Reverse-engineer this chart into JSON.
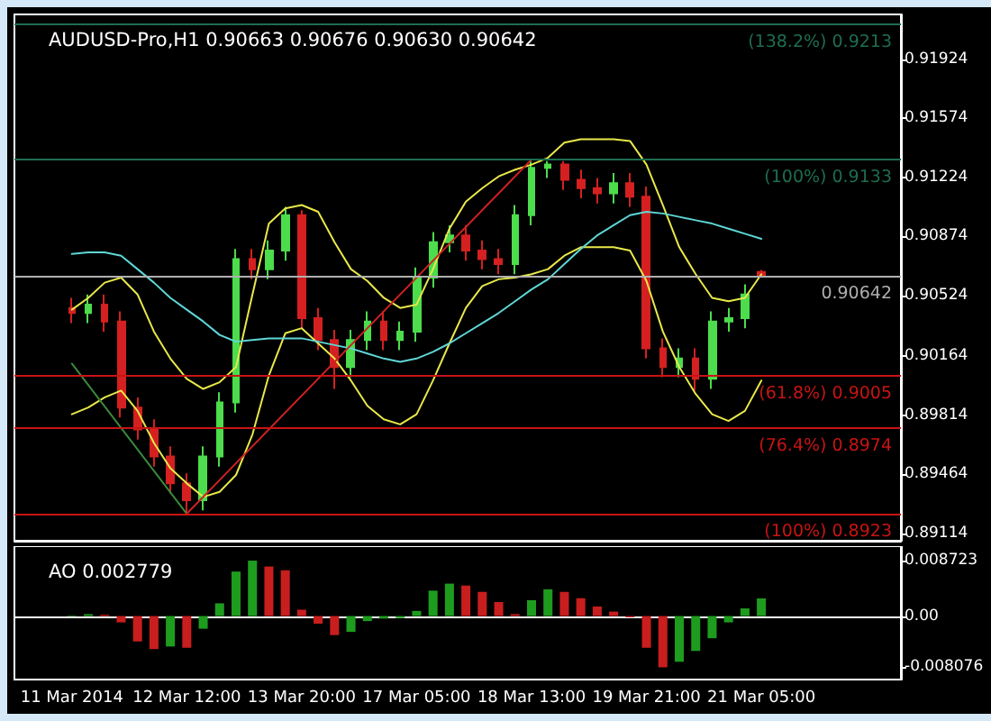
{
  "chart_data": [
    {
      "type": "candlestick",
      "title": "AUDUSD-Pro,H1 0.90663 0.90676 0.90630 0.90642",
      "categories": [
        null,
        null,
        null,
        null,
        null,
        null,
        null,
        null,
        null,
        null,
        null,
        null,
        null,
        null,
        null,
        null,
        null,
        null,
        null,
        null,
        null,
        null,
        null,
        null,
        null,
        null,
        null,
        null,
        null,
        null,
        null,
        null,
        null,
        null,
        null,
        null,
        null,
        null,
        null,
        null,
        null,
        null,
        null,
        null,
        null,
        null,
        null,
        null,
        null,
        null,
        null,
        null,
        null,
        null
      ],
      "ylim": [
        0.8907,
        0.9219
      ],
      "yticks": [
        0.89114,
        0.89464,
        0.89814,
        0.90164,
        0.90524,
        0.90874,
        0.91224,
        0.91574,
        0.91924
      ],
      "ref_lines": [
        {
          "axis": "y",
          "value": 0.9213,
          "label": "(138.2%) 0.9213",
          "color": "#1e6e50"
        },
        {
          "axis": "y",
          "value": 0.9133,
          "label": "(100%) 0.9133",
          "color": "#1e6e50"
        },
        {
          "axis": "y",
          "value": 0.90642,
          "label": "0.90642",
          "color": "#b0b0b0"
        },
        {
          "axis": "y",
          "value": 0.9005,
          "label": "(61.8%) 0.9005",
          "color": "#c81414"
        },
        {
          "axis": "y",
          "value": 0.8974,
          "label": "(76.4%) 0.8974",
          "color": "#c81414"
        },
        {
          "axis": "y",
          "value": 0.8923,
          "label": "(100%) 0.8923",
          "color": "#c81414"
        }
      ],
      "series": [
        {
          "type": "line",
          "color": "#e8e84a",
          "values": [
            null,
            null,
            null,
            0.9044,
            0.9051,
            0.906,
            0.9063,
            0.9053,
            0.9031,
            0.9015,
            0.9003,
            0.8997,
            0.9001,
            0.901,
            0.9053,
            0.9095,
            0.9104,
            0.9106,
            0.9102,
            0.9084,
            0.9068,
            0.9061,
            0.9051,
            0.9045,
            0.9047,
            0.9068,
            0.9092,
            0.9108,
            0.9116,
            0.9123,
            0.9127,
            0.913,
            0.9134,
            0.9143,
            0.9145,
            0.9145,
            0.9145,
            0.9144,
            0.913,
            0.9106,
            0.9081,
            0.9065,
            0.9051,
            0.9049,
            0.9051,
            0.9065,
            null,
            null,
            null,
            null,
            null,
            null,
            null,
            null
          ]
        },
        {
          "type": "line",
          "color": "#e8e84a",
          "values": [
            null,
            null,
            null,
            0.8982,
            0.8986,
            0.8992,
            0.8996,
            0.8984,
            0.8965,
            0.895,
            0.8941,
            0.8933,
            0.8936,
            0.8946,
            0.897,
            0.9005,
            0.903,
            0.9033,
            0.9024,
            0.9015,
            0.9002,
            0.8987,
            0.8979,
            0.8976,
            0.8982,
            0.9002,
            0.9024,
            0.9045,
            0.9058,
            0.9062,
            0.9063,
            0.9065,
            0.9068,
            0.9076,
            0.9081,
            0.9081,
            0.9081,
            0.9079,
            0.9061,
            0.9031,
            0.901,
            0.8994,
            0.8982,
            0.8978,
            0.8984,
            0.9002,
            null,
            null,
            null,
            null,
            null,
            null,
            null,
            null
          ]
        },
        {
          "type": "line",
          "color": "#5fd6d6",
          "values": [
            null,
            null,
            null,
            0.9077,
            0.9078,
            0.9078,
            0.9076,
            0.9068,
            0.906,
            0.9051,
            0.9044,
            0.9037,
            0.9029,
            0.9025,
            0.9026,
            0.9027,
            0.9027,
            0.9027,
            0.9025,
            0.9023,
            0.9021,
            0.9018,
            0.9015,
            0.9013,
            0.9015,
            0.9019,
            0.9024,
            0.903,
            0.9036,
            0.9042,
            0.9049,
            0.9056,
            0.9062,
            0.9071,
            0.908,
            0.9088,
            0.9094,
            0.91,
            0.9102,
            0.9101,
            0.9099,
            0.9097,
            0.9095,
            0.9092,
            0.9089,
            0.9086,
            null,
            null,
            null,
            null,
            null,
            null,
            null,
            null
          ]
        },
        {
          "type": "line",
          "color": "#3a8a3a",
          "values": [
            null,
            null,
            null,
            0.9012,
            null,
            null,
            null,
            null,
            null,
            null,
            0.8923,
            null,
            null,
            null,
            null,
            null,
            null,
            null,
            null,
            null,
            null,
            null,
            null,
            null,
            null,
            null,
            null,
            null,
            null,
            null,
            null,
            null,
            null,
            null,
            null,
            null,
            null,
            null,
            null,
            null,
            null,
            null,
            null,
            null,
            null,
            null,
            null,
            null,
            null,
            null,
            null,
            null,
            null,
            null
          ]
        },
        {
          "type": "line",
          "color": "#cc2222",
          "values": [
            null,
            null,
            null,
            null,
            null,
            null,
            null,
            null,
            null,
            null,
            0.8923,
            null,
            null,
            null,
            null,
            null,
            null,
            null,
            null,
            null,
            null,
            null,
            null,
            null,
            null,
            null,
            null,
            null,
            null,
            null,
            null,
            0.9133,
            null,
            null,
            null,
            null,
            null,
            null,
            null,
            null,
            null,
            null,
            null,
            null,
            null,
            null,
            null,
            null,
            null,
            null,
            null,
            null,
            null,
            null
          ]
        },
        {
          "type": "candlestick",
          "ohlc": [
            null,
            null,
            null,
            [
              0.9045,
              0.9051,
              0.9036,
              0.9042
            ],
            [
              0.9042,
              0.9053,
              0.9036,
              0.9047
            ],
            [
              0.9047,
              0.9053,
              0.9031,
              0.9037
            ],
            [
              0.9037,
              0.9043,
              0.898,
              0.8986
            ],
            [
              0.8986,
              0.8992,
              0.8967,
              0.8973
            ],
            [
              0.8973,
              0.8979,
              0.8951,
              0.8957
            ],
            [
              0.8957,
              0.8963,
              0.8935,
              0.8941
            ],
            [
              0.8941,
              0.8947,
              0.8923,
              0.8931
            ],
            [
              0.8931,
              0.8963,
              0.8925,
              0.8957
            ],
            [
              0.8957,
              0.8995,
              0.8951,
              0.8989
            ],
            [
              0.8989,
              0.908,
              0.8983,
              0.9074
            ],
            [
              0.9074,
              0.908,
              0.9062,
              0.9068
            ],
            [
              0.9068,
              0.9085,
              0.9062,
              0.9079
            ],
            [
              0.9079,
              0.9105,
              0.9073,
              0.91
            ],
            [
              0.91,
              0.9103,
              0.9033,
              0.9039
            ],
            [
              0.9039,
              0.9045,
              0.902,
              0.9026
            ],
            [
              0.9026,
              0.9032,
              0.8997,
              0.901
            ],
            [
              0.901,
              0.9032,
              0.9004,
              0.9026
            ],
            [
              0.9026,
              0.9043,
              0.902,
              0.9037
            ],
            [
              0.9037,
              0.9043,
              0.902,
              0.9026
            ],
            [
              0.9026,
              0.9037,
              0.902,
              0.9031
            ],
            [
              0.9031,
              0.9069,
              0.9025,
              0.9063
            ],
            [
              0.9063,
              0.909,
              0.9057,
              0.9084
            ],
            [
              0.9084,
              0.9094,
              0.9078,
              0.9088
            ],
            [
              0.9088,
              0.9094,
              0.9073,
              0.9079
            ],
            [
              0.9079,
              0.9085,
              0.9068,
              0.9074
            ],
            [
              0.9074,
              0.908,
              0.9065,
              0.9071
            ],
            [
              0.9071,
              0.9106,
              0.9065,
              0.91
            ],
            [
              0.91,
              0.9133,
              0.9094,
              0.9128
            ],
            [
              0.9128,
              0.9132,
              0.9122,
              0.913
            ],
            [
              0.913,
              0.9132,
              0.9115,
              0.9121
            ],
            [
              0.9121,
              0.9127,
              0.911,
              0.9116
            ],
            [
              0.9116,
              0.9122,
              0.9107,
              0.9113
            ],
            [
              0.9113,
              0.9125,
              0.9107,
              0.9119
            ],
            [
              0.9119,
              0.9125,
              0.9105,
              0.9111
            ],
            [
              0.9111,
              0.9117,
              0.9015,
              0.9021
            ],
            [
              0.9021,
              0.9027,
              0.9004,
              0.901
            ],
            [
              0.901,
              0.9021,
              0.9004,
              0.9015
            ],
            [
              0.9015,
              0.9021,
              0.8996,
              0.9003
            ],
            [
              0.9003,
              0.9043,
              0.8997,
              0.9037
            ],
            [
              0.9037,
              0.9045,
              0.9031,
              0.9039
            ],
            [
              0.9039,
              0.9059,
              0.9033,
              0.9053
            ],
            [
              0.90663,
              0.90676,
              0.9063,
              0.90642
            ],
            null,
            null,
            null,
            null,
            null,
            null,
            null,
            null
          ],
          "colors": [
            null,
            null,
            null,
            "#d42020",
            "#4cdc4c",
            "#d42020",
            "#d42020",
            "#d42020",
            "#d42020",
            "#d42020",
            "#d42020",
            "#4cdc4c",
            "#4cdc4c",
            "#4cdc4c",
            "#d42020",
            "#4cdc4c",
            "#4cdc4c",
            "#d42020",
            "#d42020",
            "#d42020",
            "#4cdc4c",
            "#4cdc4c",
            "#d42020",
            "#4cdc4c",
            "#4cdc4c",
            "#4cdc4c",
            "#4cdc4c",
            "#d42020",
            "#d42020",
            "#d42020",
            "#4cdc4c",
            "#4cdc4c",
            "#4cdc4c",
            "#d42020",
            "#d42020",
            "#d42020",
            "#4cdc4c",
            "#d42020",
            "#d42020",
            "#d42020",
            "#4cdc4c",
            "#d42020",
            "#4cdc4c",
            "#4cdc4c",
            "#4cdc4c",
            "#d42020",
            null,
            null,
            null,
            null,
            null,
            null,
            null,
            null
          ]
        }
      ]
    },
    {
      "type": "bar",
      "title": "AO 0.002779",
      "categories": [
        null,
        null,
        null,
        "11 Mar 2014",
        null,
        null,
        null,
        null,
        null,
        null,
        "12 Mar 12:00",
        null,
        null,
        null,
        null,
        null,
        null,
        "13 Mar 20:00",
        null,
        null,
        null,
        null,
        null,
        null,
        "17 Mar 05:00",
        null,
        null,
        null,
        null,
        null,
        null,
        "18 Mar 13:00",
        null,
        null,
        null,
        null,
        null,
        null,
        "19 Mar 21:00",
        null,
        null,
        null,
        null,
        null,
        null,
        "21 Mar 05:00",
        null,
        null,
        null,
        null,
        null,
        null,
        null,
        null
      ],
      "ylim": [
        -0.01,
        0.011
      ],
      "yticks": [
        -0.008076,
        {
          "value": 0,
          "label": "0.00"
        },
        0.008723
      ],
      "series": [
        {
          "values": [
            null,
            null,
            null,
            0.0001,
            0.0003,
            0.0002,
            -0.001,
            -0.004,
            -0.0052,
            -0.0048,
            -0.005,
            -0.002,
            0.002,
            0.007,
            0.008723,
            0.0078,
            0.0072,
            0.001,
            -0.0012,
            -0.003,
            -0.0025,
            -0.0008,
            -0.0004,
            -0.0003,
            0.0008,
            0.004,
            0.0051,
            0.0048,
            0.0038,
            0.0022,
            0.0003,
            0.0025,
            0.0042,
            0.0038,
            0.0028,
            0.0015,
            0.0007,
            -0.0002,
            -0.005,
            -0.008076,
            -0.0072,
            -0.0055,
            -0.0035,
            -0.001,
            0.0012,
            0.002779,
            null,
            null,
            null,
            null,
            null,
            null,
            null,
            null
          ],
          "colors": [
            null,
            null,
            null,
            "#1e9c1e",
            "#1e9c1e",
            "#c81e1e",
            "#c81e1e",
            "#c81e1e",
            "#c81e1e",
            "#1e9c1e",
            "#c81e1e",
            "#1e9c1e",
            "#1e9c1e",
            "#1e9c1e",
            "#1e9c1e",
            "#c81e1e",
            "#c81e1e",
            "#c81e1e",
            "#c81e1e",
            "#c81e1e",
            "#1e9c1e",
            "#1e9c1e",
            "#1e9c1e",
            "#1e9c1e",
            "#1e9c1e",
            "#1e9c1e",
            "#1e9c1e",
            "#c81e1e",
            "#c81e1e",
            "#c81e1e",
            "#c81e1e",
            "#1e9c1e",
            "#1e9c1e",
            "#c81e1e",
            "#c81e1e",
            "#c81e1e",
            "#c81e1e",
            "#c81e1e",
            "#c81e1e",
            "#c81e1e",
            "#1e9c1e",
            "#1e9c1e",
            "#1e9c1e",
            "#1e9c1e",
            "#1e9c1e",
            "#1e9c1e",
            null,
            null,
            null,
            null,
            null,
            null,
            null,
            null
          ]
        }
      ]
    }
  ]
}
